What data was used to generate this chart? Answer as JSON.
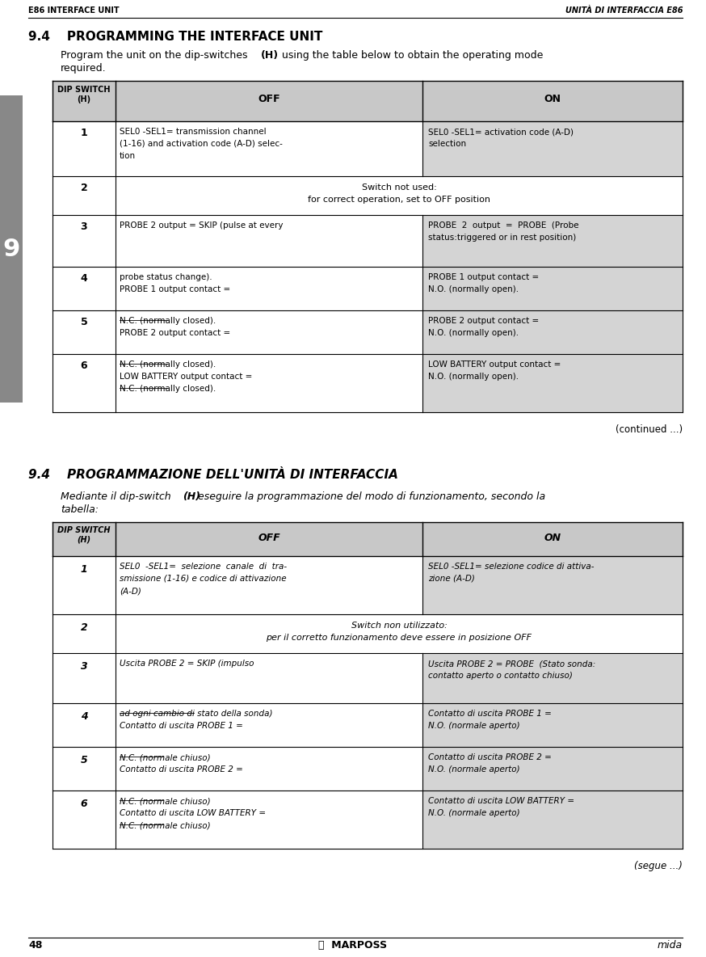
{
  "page_bg": "#ffffff",
  "header_left": "E86 INTERFACE UNIT",
  "header_right": "UNITÀ DI INTERFACCIA E86",
  "footer_page": "48",
  "footer_right": "mida",
  "section1_title": "9.4    PROGRAMMING THE INTERFACE UNIT",
  "section1_continued": "(continued ...)",
  "section2_title": "9.4    PROGRAMMAZIONE DELL'UNITÀ DI INTERFACCIA",
  "section2_intro_1": "Mediante il dip-switch ",
  "section2_intro_2": "(H)",
  "section2_intro_3": " eseguire la programmazione del modo di funzionamento, secondo la",
  "section2_intro_4": "tabella:",
  "section2_continued": "(segue ...)",
  "tab1_rows": [
    {
      "num": "1",
      "off_lines": [
        "SEL0 -SEL1= transmission channel",
        "(1-16) and activation code (A-D) selec-",
        "tion"
      ],
      "on_lines": [
        "SEL0 -SEL1= activation code (A-D)",
        "selection"
      ],
      "shaded_on": true,
      "span": false
    },
    {
      "num": "2",
      "off_lines": [
        "Switch not used:",
        "for correct operation, set to OFF position"
      ],
      "on_lines": [],
      "shaded_on": false,
      "span": true
    },
    {
      "num": "3",
      "off_lines": [
        "PROBE 2 output = SKIP (pulse at every"
      ],
      "on_lines": [
        "PROBE  2  output  =  PROBE  (Probe",
        "status:triggered or in rest position)"
      ],
      "shaded_on": true,
      "span": false
    },
    {
      "num": "4",
      "off_lines": [
        "probe status change).",
        "PROBE 1 output contact ="
      ],
      "on_lines": [
        "PROBE 1 output contact =",
        "N.O. (normally open)."
      ],
      "shaded_on": true,
      "span": false,
      "off_strike": [
        false,
        false
      ]
    },
    {
      "num": "5",
      "off_lines": [
        "N.C. (normally closed).",
        "PROBE 2 output contact ="
      ],
      "on_lines": [
        "PROBE 2 output contact =",
        "N.O. (normally open)."
      ],
      "shaded_on": true,
      "span": false,
      "off_strike": [
        true,
        false
      ]
    },
    {
      "num": "6",
      "off_lines": [
        "N.C. (normally closed).",
        "LOW BATTERY output contact =",
        "N.C. (normally closed)."
      ],
      "on_lines": [
        "LOW BATTERY output contact =",
        "N.O. (normally open)."
      ],
      "shaded_on": true,
      "span": false,
      "off_strike": [
        true,
        false,
        true
      ]
    }
  ],
  "tab2_rows": [
    {
      "num": "1",
      "off_lines": [
        "SEL0  -SEL1=  selezione  canale  di  tra-",
        "smissione (1-16) e codice di attivazione",
        "(A-D)"
      ],
      "on_lines": [
        "SEL0 -SEL1= selezione codice di attiva-",
        "zione (A-D)"
      ],
      "shaded_on": true,
      "span": false
    },
    {
      "num": "2",
      "off_lines": [
        "Switch non utilizzato:",
        "per il corretto funzionamento deve essere in posizione OFF"
      ],
      "on_lines": [],
      "shaded_on": false,
      "span": true
    },
    {
      "num": "3",
      "off_lines": [
        "Uscita PROBE 2 = SKIP (impulso"
      ],
      "on_lines": [
        "Uscita PROBE 2 = PROBE  (Stato sonda:",
        "contatto aperto o contatto chiuso)"
      ],
      "shaded_on": true,
      "span": false
    },
    {
      "num": "4",
      "off_lines": [
        "ad ogni cambio di stato della sonda)",
        "Contatto di uscita PROBE 1 ="
      ],
      "on_lines": [
        "Contatto di uscita PROBE 1 =",
        "N.O. (normale aperto)"
      ],
      "shaded_on": true,
      "span": false,
      "off_strike": [
        true,
        false
      ]
    },
    {
      "num": "5",
      "off_lines": [
        "N.C. (normale chiuso)",
        "Contatto di uscita PROBE 2 ="
      ],
      "on_lines": [
        "Contatto di uscita PROBE 2 =",
        "N.O. (normale aperto)"
      ],
      "shaded_on": true,
      "span": false,
      "off_strike": [
        true,
        false
      ]
    },
    {
      "num": "6",
      "off_lines": [
        "N.C. (normale chiuso)",
        "Contatto di uscita LOW BATTERY =",
        "N.C. (normale chiuso)"
      ],
      "on_lines": [
        "Contatto di uscita LOW BATTERY =",
        "N.O. (normale aperto)"
      ],
      "shaded_on": true,
      "span": false,
      "off_strike": [
        true,
        false,
        true
      ]
    }
  ],
  "tab_header_bg": "#c8c8c8",
  "tab_on_bg": "#d4d4d4",
  "sidebar_bg": "#888888"
}
